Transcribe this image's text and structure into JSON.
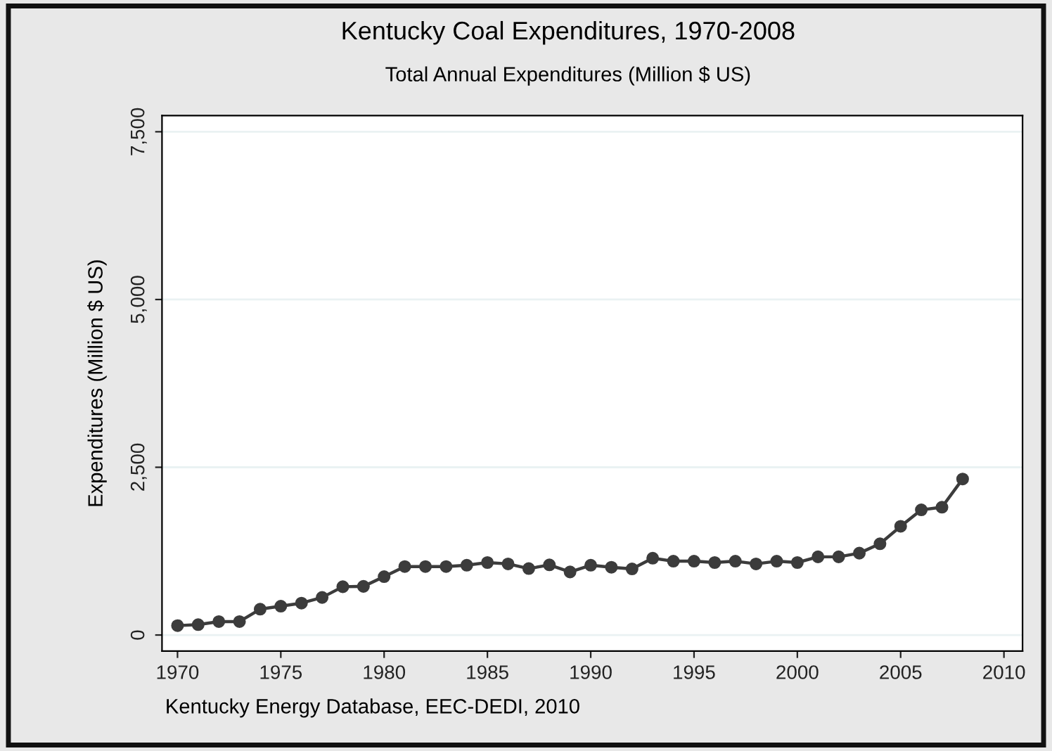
{
  "chart_data": {
    "type": "line",
    "title": "Kentucky Coal Expenditures, 1970-2008",
    "subtitle": "Total Annual Expenditures (Million $ US)",
    "ylabel": "Expenditures (Million $ US)",
    "annotations": [
      "Kentucky Energy Database, EEC-DEDI, 2010"
    ],
    "x": [
      1970,
      1971,
      1972,
      1973,
      1974,
      1975,
      1976,
      1977,
      1978,
      1979,
      1980,
      1981,
      1982,
      1983,
      1984,
      1985,
      1986,
      1987,
      1988,
      1989,
      1990,
      1991,
      1992,
      1993,
      1994,
      1995,
      1996,
      1997,
      1998,
      1999,
      2000,
      2001,
      2002,
      2003,
      2004,
      2005,
      2006,
      2007,
      2008
    ],
    "series": [
      {
        "color": "#3c3c3c",
        "values": [
          140,
          155,
          200,
          200,
          385,
          430,
          475,
          560,
          720,
          725,
          870,
          1020,
          1020,
          1020,
          1040,
          1080,
          1060,
          990,
          1045,
          940,
          1040,
          1010,
          985,
          1145,
          1100,
          1100,
          1080,
          1100,
          1060,
          1100,
          1080,
          1165,
          1165,
          1220,
          1360,
          1620,
          1865,
          1905,
          2325
        ]
      }
    ],
    "xlim": [
      1969.25,
      2010.9
    ],
    "ylim": [
      -240,
      7740
    ],
    "xticks": [
      1970,
      1975,
      1980,
      1985,
      1990,
      1995,
      2000,
      2005,
      2010
    ],
    "yticks": [
      {
        "value": 0,
        "label": "0"
      },
      {
        "value": 2500,
        "label": "2,500"
      },
      {
        "value": 5000,
        "label": "5,000"
      },
      {
        "value": 7500,
        "label": "7,500"
      }
    ],
    "grid": "y",
    "marker": "circle",
    "line_style": "solid",
    "legend": false
  }
}
